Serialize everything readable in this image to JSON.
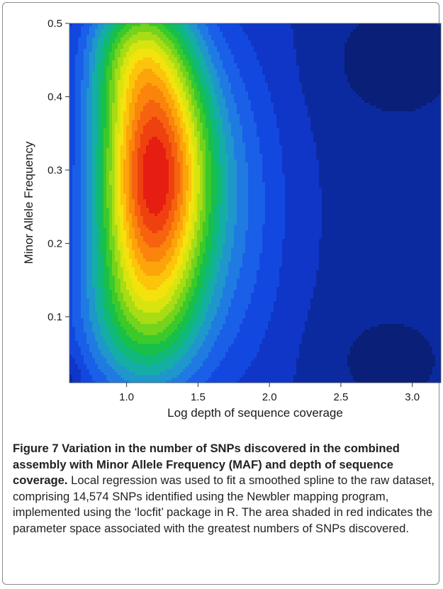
{
  "chart_data": {
    "type": "heatmap",
    "subtype": "filled-contour",
    "xlabel": "Log depth of sequence coverage",
    "ylabel": "Minor Allele Frequency",
    "xlim": [
      0.6,
      3.2
    ],
    "ylim": [
      0.01,
      0.5
    ],
    "x_ticks": [
      "1.0",
      "1.5",
      "2.0",
      "2.5",
      "3.0"
    ],
    "y_ticks": [
      "0.1",
      "0.2",
      "0.3",
      "0.4",
      "0.5"
    ],
    "grid": false,
    "colormap": [
      "#0a1f78",
      "#0c2aa0",
      "#0f36c6",
      "#1348e0",
      "#1a5fe8",
      "#1f7be2",
      "#1f96cc",
      "#14aea6",
      "#10b87a",
      "#18bf4a",
      "#3cc92a",
      "#74d31c",
      "#a8dc14",
      "#d8e410",
      "#f4e20c",
      "#fcc40a",
      "#fca40a",
      "#fa840c",
      "#f6620e",
      "#ef4010",
      "#e61e12"
    ],
    "peak": {
      "x": 1.2,
      "y": 0.3
    },
    "density_components": [
      {
        "x": 1.2,
        "y": 0.295,
        "sx": 0.26,
        "sy": 0.125,
        "weight": 1.0
      },
      {
        "x": 1.05,
        "y": 0.46,
        "sx": 0.22,
        "sy": 0.06,
        "weight": 0.25
      },
      {
        "x": 1.1,
        "y": 0.1,
        "sx": 0.3,
        "sy": 0.08,
        "weight": 0.25
      },
      {
        "x": 1.8,
        "y": 0.25,
        "sx": 0.25,
        "sy": 0.16,
        "weight": 0.1
      }
    ],
    "background_features": [
      {
        "x": 2.9,
        "y": 0.45,
        "sx": 0.33,
        "sy": 0.06,
        "weight": -0.06
      },
      {
        "x": 2.85,
        "y": 0.04,
        "sx": 0.3,
        "sy": 0.05,
        "weight": -0.05
      },
      {
        "x": 0.62,
        "y": 0.02,
        "sx": 0.05,
        "sy": 0.02,
        "weight": -0.04
      }
    ]
  },
  "caption": {
    "bold": "Figure 7 Variation in the number of SNPs discovered in the combined assembly with Minor Allele Frequency (MAF) and depth of sequence coverage.",
    "text": " Local regression was used to fit a smoothed spline to the raw dataset, comprising 14,574 SNPs identified using the Newbler mapping program, implemented using the ‘locfit’ package in R. The area shaded in red indicates the parameter space associated with the greatest numbers of SNPs discovered."
  }
}
